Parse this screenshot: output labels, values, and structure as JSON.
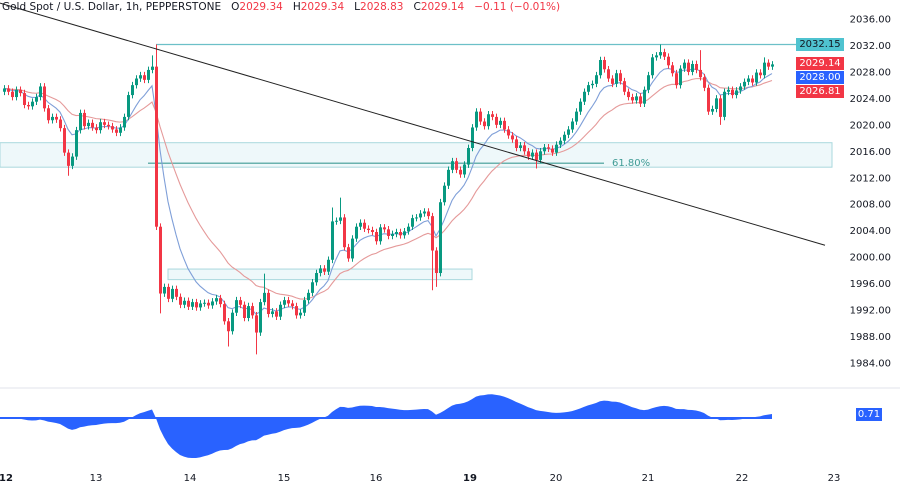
{
  "header": {
    "symbol": "Gold Spot / U.S. Dollar, 1h, PEPPERSTONE",
    "open_label": "O",
    "open": "2029.34",
    "high_label": "H",
    "high": "2029.34",
    "low_label": "L",
    "low": "2028.83",
    "close_label": "C",
    "close": "2029.14",
    "change": "−0.11 (−0.01%)"
  },
  "price_tags": {
    "resistance": "2032.15",
    "last": "2029.14",
    "ma_fast": "2028.00",
    "ma_slow": "2026.81",
    "oscillator": "0.71"
  },
  "colors": {
    "up": "#089981",
    "down": "#f23645",
    "ma_fast": "#7f9fd8",
    "ma_slow": "#e59a9a",
    "level": "#6cc0c8",
    "zone_fill": "#eef8fa",
    "oscillator": "#2962ff",
    "trendline": "#222222",
    "tag_resistance": "#4fc3d0",
    "tag_blue": "#2962ff",
    "tag_red": "#f23645"
  },
  "chart_data": {
    "type": "candlestick",
    "interval": "1h",
    "ylim": [
      1982,
      2038
    ],
    "y_ticks": [
      "2036.00",
      "2032.00",
      "2028.00",
      "2024.00",
      "2020.00",
      "2016.00",
      "2012.00",
      "2008.00",
      "2004.00",
      "2000.00",
      "1996.00",
      "1992.00",
      "1988.00",
      "1984.00"
    ],
    "x_ticks": [
      {
        "label": "12",
        "bold": true,
        "candle": 0
      },
      {
        "label": "13",
        "bold": false,
        "candle": 23
      },
      {
        "label": "14",
        "bold": false,
        "candle": 46.5
      },
      {
        "label": "15",
        "bold": false,
        "candle": 70
      },
      {
        "label": "16",
        "bold": false,
        "candle": 93
      },
      {
        "label": "19",
        "bold": true,
        "candle": 116.5
      },
      {
        "label": "20",
        "bold": false,
        "candle": 138
      },
      {
        "label": "21",
        "bold": false,
        "candle": 161
      },
      {
        "label": "22",
        "bold": false,
        "candle": 184.5
      },
      {
        "label": "23",
        "bold": false,
        "candle": 207.5
      }
    ],
    "first_open": 2025.0,
    "close": [
      2025.5,
      2025,
      2024.2,
      2025.3,
      2024.8,
      2023,
      2022.8,
      2023.5,
      2024.2,
      2025.8,
      2022.5,
      2020.7,
      2021.2,
      2020.8,
      2019.5,
      2015.8,
      2013.8,
      2015.2,
      2019.2,
      2021.8,
      2019.8,
      2020.3,
      2019.6,
      2019.2,
      2020.4,
      2020,
      2019.8,
      2019.3,
      2018.8,
      2019.6,
      2021.2,
      2024.5,
      2026,
      2027,
      2027.5,
      2026.8,
      2028.3,
      2028.8,
      2004.6,
      1994.5,
      1995.5,
      1993.7,
      1995.2,
      1994,
      1992.8,
      1993.4,
      1992.5,
      1993.2,
      1992.4,
      1993,
      1993.1,
      1992.7,
      1993.3,
      1993.8,
      1992.9,
      1990.3,
      1988.8,
      1991.6,
      1993.5,
      1992.8,
      1990.8,
      1992.6,
      1991.2,
      1988.6,
      1993.2,
      1994.6,
      1991.4,
      1991.8,
      1991,
      1992.8,
      1993.5,
      1993,
      1992.6,
      1991.2,
      1991.6,
      1993.5,
      1994.6,
      1996.2,
      1997.6,
      1998.3,
      1997.8,
      1999.6,
      2005.4,
      2005.5,
      2006,
      2001.5,
      1999.8,
      2002.8,
      2004.6,
      2005.2,
      2004.3,
      2004.1,
      2003.8,
      2002.4,
      2004.5,
      2004.2,
      2003.2,
      2003.5,
      2003.8,
      2003.3,
      2003.9,
      2004.6,
      2005.9,
      2006,
      2006.6,
      2006.9,
      2006.2,
      2001,
      1997.6,
      2008.3,
      2010.8,
      2013.2,
      2014.5,
      2013.2,
      2012.5,
      2014,
      2016.5,
      2019.6,
      2022,
      2020.5,
      2019.8,
      2021.6,
      2021.2,
      2020,
      2020.6,
      2019.3,
      2018.4,
      2017.8,
      2016.5,
      2016.9,
      2016,
      2015.2,
      2015.8,
      2014.7,
      2016,
      2016.6,
      2016.4,
      2015.8,
      2017,
      2017.6,
      2018.5,
      2019.3,
      2020.5,
      2022,
      2023.5,
      2025,
      2026,
      2026.2,
      2027.5,
      2029.8,
      2028.4,
      2027,
      2026.2,
      2027.8,
      2026.6,
      2025,
      2024.2,
      2023.7,
      2024.3,
      2023.2,
      2025.3,
      2027.5,
      2030.2,
      2030.5,
      2031,
      2030.3,
      2029,
      2027.8,
      2026,
      2028.5,
      2029.4,
      2028,
      2029.2,
      2028.3,
      2027.2,
      2025.6,
      2022,
      2022.4,
      2024,
      2021.2,
      2025,
      2025.3,
      2024.5,
      2025.2,
      2025.8,
      2026.5,
      2027,
      2026.4,
      2027.9,
      2027.5,
      2029.4,
      2028.8,
      2029.14
    ],
    "wicks": [
      {
        "candle": 16,
        "low": 2012.3
      },
      {
        "candle": 37,
        "high": 2030.5
      },
      {
        "candle": 38,
        "high": 2032.15
      },
      {
        "candle": 39,
        "low": 1991.5
      },
      {
        "candle": 56,
        "low": 1986.5
      },
      {
        "candle": 63,
        "low": 1985.3
      },
      {
        "candle": 65,
        "high": 1997.5
      },
      {
        "candle": 82,
        "high": 2007.5
      },
      {
        "candle": 84,
        "high": 2009
      },
      {
        "candle": 107,
        "low": 1995
      },
      {
        "candle": 108,
        "low": 1995.5
      },
      {
        "candle": 133,
        "low": 2013.4
      },
      {
        "candle": 164,
        "high": 2032.15
      },
      {
        "candle": 174,
        "high": 2031.3
      },
      {
        "candle": 179,
        "low": 2020
      },
      {
        "candle": 190,
        "high": 2030.2
      }
    ],
    "levels": [
      {
        "price": 2032.15,
        "from_candle": 38
      },
      {
        "price": 2014.2,
        "from_candle": 36,
        "to_candle": 150,
        "label": "61.80%"
      }
    ],
    "zones": [
      {
        "low": 2013.6,
        "high": 2017.3,
        "from_candle": -1
      },
      {
        "low": 1996.6,
        "high": 1998.2,
        "from_candle": 41,
        "to_candle": 117
      }
    ],
    "trendline": [
      {
        "candle": -1,
        "price": 2038.4
      },
      {
        "candle": 205.25,
        "price": 2001.8
      }
    ],
    "oscillator_last": 0.71
  }
}
